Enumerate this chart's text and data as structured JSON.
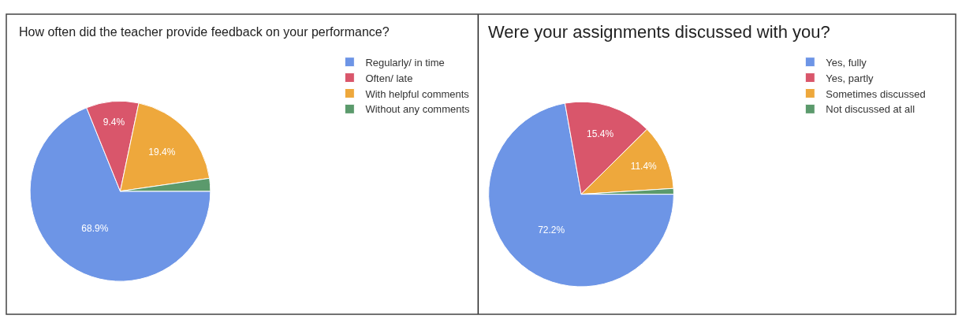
{
  "chart_data": [
    {
      "type": "pie",
      "title": "How often did the teacher provide feedback on your performance?",
      "categories": [
        "Regularly/ in time",
        "Often/ late",
        "With helpful comments",
        "Without any comments"
      ],
      "values": [
        68.9,
        9.4,
        19.4,
        2.3
      ],
      "colors": [
        "#6d95e6",
        "#d9566b",
        "#eea83c",
        "#5b9a6c"
      ],
      "value_labels": [
        "68.9%",
        "9.4%",
        "19.4%",
        null
      ],
      "legend": "right"
    },
    {
      "type": "pie",
      "title": "Were your assignments discussed with you?",
      "categories": [
        "Yes, fully",
        "Yes, partly",
        "Sometimes discussed",
        "Not discussed at all"
      ],
      "values": [
        72.2,
        15.4,
        11.4,
        1.0
      ],
      "colors": [
        "#6d95e6",
        "#d9566b",
        "#eea83c",
        "#5b9a6c"
      ],
      "value_labels": [
        "72.2%",
        "15.4%",
        "11.4%",
        null
      ],
      "legend": "right"
    }
  ]
}
